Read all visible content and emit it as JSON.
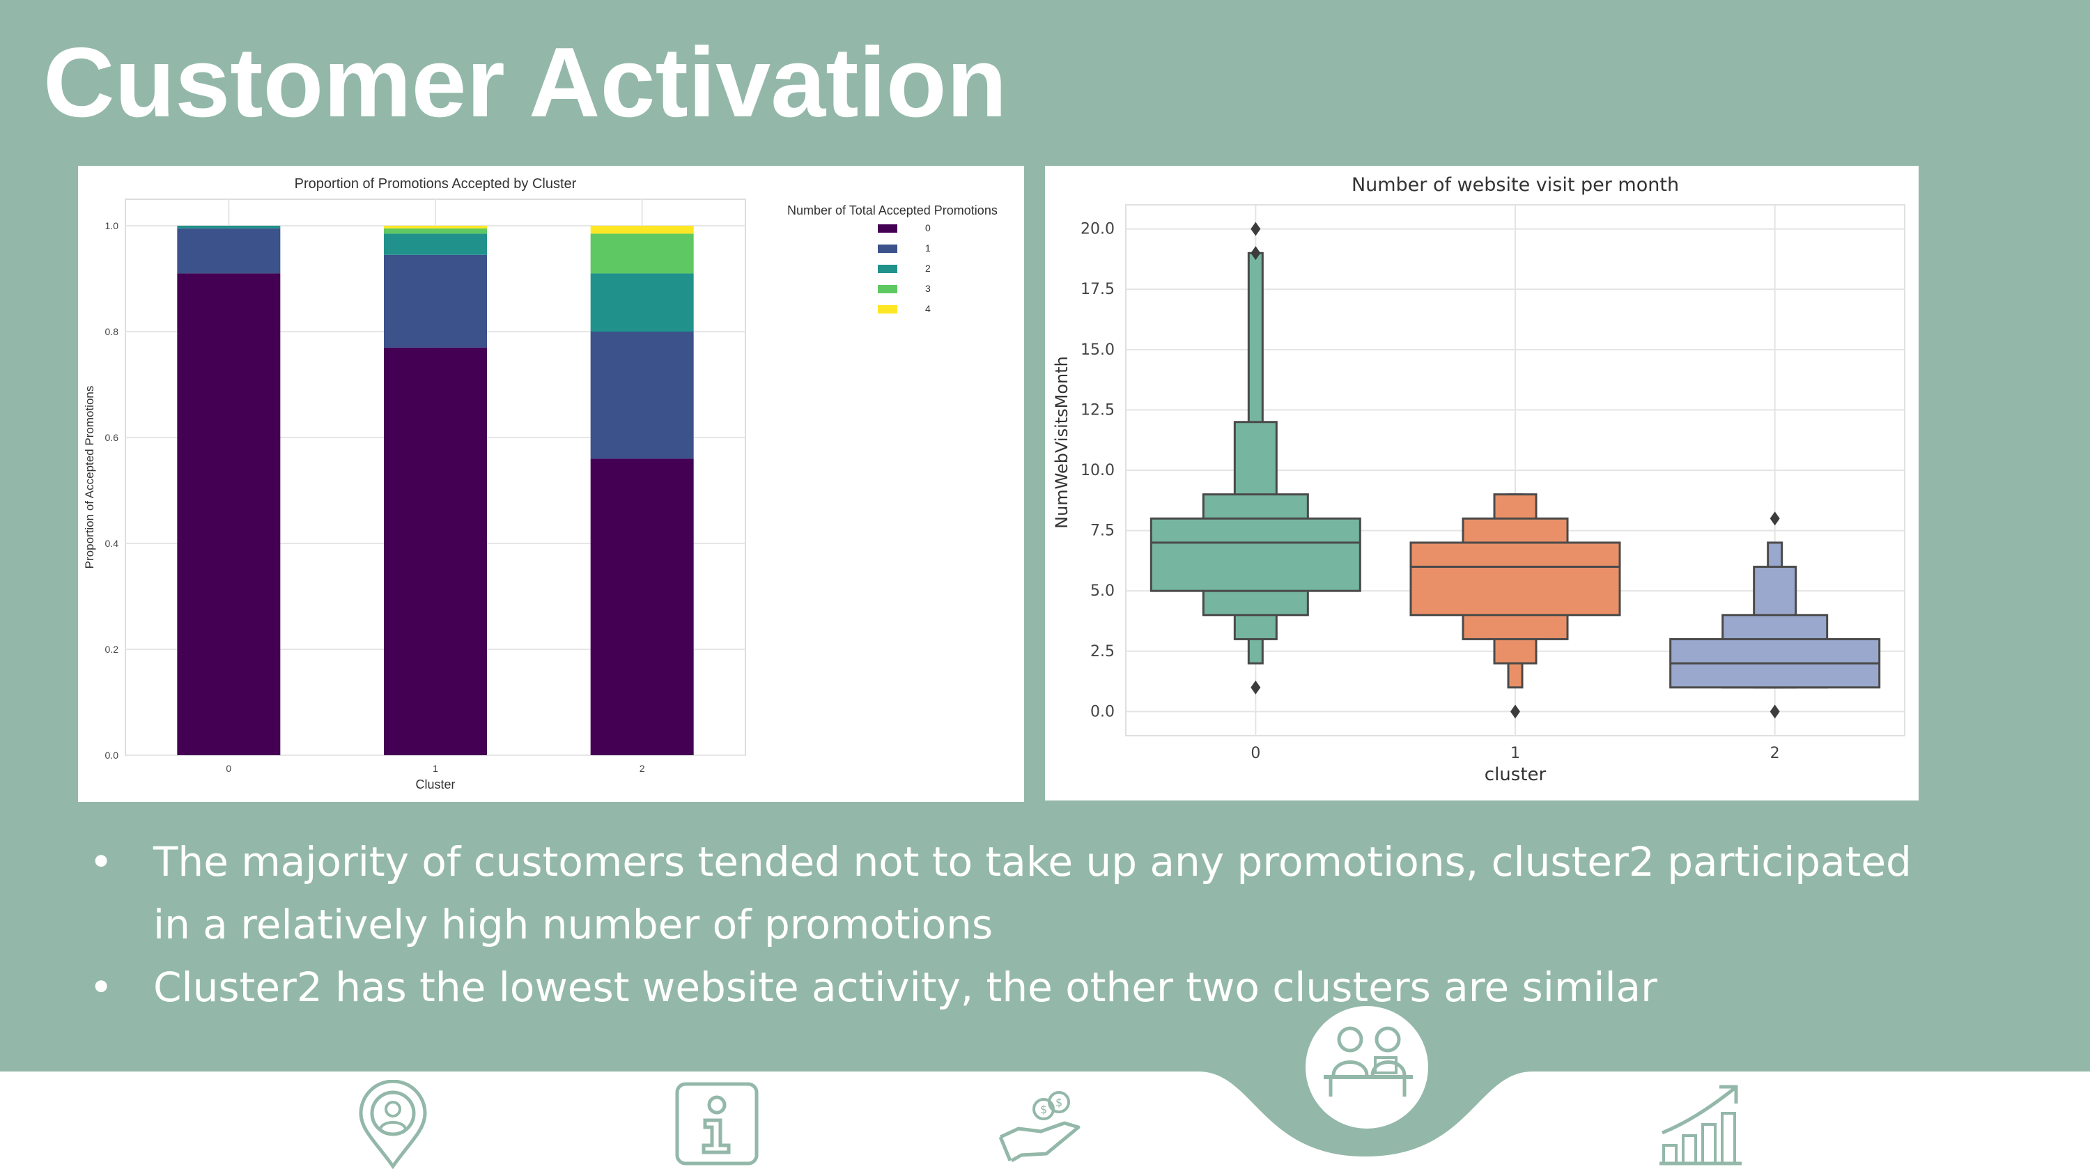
{
  "slide": {
    "title": "Customer Activation",
    "bullets": [
      "The majority of customers tended not to take up any promotions, cluster2 participated in a relatively high number of promotions",
      "Cluster2 has the lowest website activity, the other two clusters are similar"
    ]
  },
  "colors": {
    "background": "#93b8a9",
    "accent_circle": "#93b8a9",
    "icon_stroke": "#93b8a9",
    "text": "#ffffff"
  },
  "nav_icons": [
    "location-pin-person-icon",
    "info-icon",
    "hand-coins-icon",
    "team-meeting-icon",
    "growth-chart-icon"
  ],
  "chart_data": [
    {
      "type": "bar",
      "stacked": true,
      "title": "Proportion of Promotions Accepted by Cluster",
      "xlabel": "Cluster",
      "ylabel": "Proportion of Accepted Promotions",
      "categories": [
        "0",
        "1",
        "2"
      ],
      "ylim": [
        0,
        1.05
      ],
      "yticks": [
        "0.0",
        "0.2",
        "0.4",
        "0.6",
        "0.8",
        "1.0"
      ],
      "legend_title": "Number of Total Accepted Promotions",
      "legend_position": "top-right",
      "grid": true,
      "series": [
        {
          "name": "0",
          "color": "#440154",
          "values": [
            0.91,
            0.77,
            0.56
          ]
        },
        {
          "name": "1",
          "color": "#3b528b",
          "values": [
            0.085,
            0.175,
            0.24
          ]
        },
        {
          "name": "2",
          "color": "#21918c",
          "values": [
            0.005,
            0.04,
            0.11
          ]
        },
        {
          "name": "3",
          "color": "#5ec962",
          "values": [
            0.0,
            0.01,
            0.075
          ]
        },
        {
          "name": "4",
          "color": "#fde725",
          "values": [
            0.0,
            0.005,
            0.015
          ]
        }
      ]
    },
    {
      "type": "boxen",
      "title": "Number of website visit per month",
      "xlabel": "cluster",
      "ylabel": "NumWebVisitsMonth",
      "categories": [
        "0",
        "1",
        "2"
      ],
      "ylim": [
        -1,
        21
      ],
      "yticks": [
        "0.0",
        "2.5",
        "5.0",
        "7.5",
        "10.0",
        "12.5",
        "15.0",
        "17.5",
        "20.0"
      ],
      "grid": true,
      "series": [
        {
          "name": "0",
          "color": "#76b5a0",
          "median": 7,
          "levels": [
            [
              5,
              8
            ],
            [
              4,
              9
            ],
            [
              3,
              12
            ],
            [
              2,
              19
            ]
          ],
          "outliers": [
            1,
            19,
            20
          ]
        },
        {
          "name": "1",
          "color": "#ea9068",
          "median": 6,
          "levels": [
            [
              4,
              7
            ],
            [
              3,
              8
            ],
            [
              2,
              9
            ],
            [
              1,
              9
            ]
          ],
          "outliers": [
            0
          ]
        },
        {
          "name": "2",
          "color": "#9aa8cd",
          "median": 2,
          "levels": [
            [
              1,
              3
            ],
            [
              1,
              4
            ],
            [
              1,
              6
            ],
            [
              1,
              7
            ]
          ],
          "outliers": [
            0,
            8
          ]
        }
      ]
    }
  ]
}
